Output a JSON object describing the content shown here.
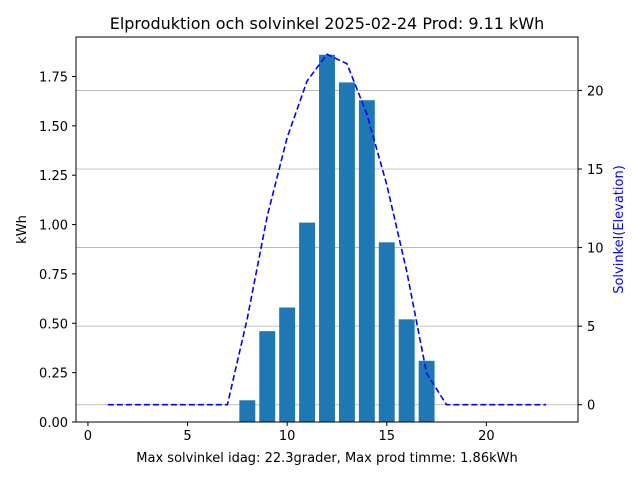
{
  "chart_data": {
    "type": "bar",
    "title": "Elproduktion och solvinkel 2025-02-24 Prod: 9.11 kWh",
    "xlabel": "Max solvinkel idag: 22.3grader, Max prod timme: 1.86kWh",
    "ylabel": "kWh",
    "y2label": "Solvinkel(Elevation)",
    "xlim": [
      -0.6,
      24.6
    ],
    "ylim": [
      0,
      1.95
    ],
    "y2lim": [
      -1.1,
      23.4
    ],
    "xticks": [
      0,
      5,
      10,
      15,
      20
    ],
    "xtick_labels": [
      "0",
      "5",
      "10",
      "15",
      "20"
    ],
    "yticks": [
      0,
      0.25,
      0.5,
      0.75,
      1.0,
      1.25,
      1.5,
      1.75
    ],
    "ytick_labels": [
      "0.00",
      "0.25",
      "0.50",
      "0.75",
      "1.00",
      "1.25",
      "1.50",
      "1.75"
    ],
    "y2ticks": [
      0,
      5,
      10,
      15,
      20
    ],
    "y2tick_labels": [
      "0",
      "5",
      "10",
      "15",
      "20"
    ],
    "grid": "horizontal lines at right-axis ticks",
    "bars": {
      "name": "kWh",
      "color": "#1f77b4",
      "x": [
        8,
        9,
        10,
        11,
        12,
        13,
        14,
        15,
        16,
        17
      ],
      "values": [
        0.11,
        0.46,
        0.58,
        1.01,
        1.86,
        1.72,
        1.63,
        0.91,
        0.52,
        0.31
      ]
    },
    "line": {
      "name": "Solvinkel(Elevation)",
      "color": "#0000ff",
      "style": "dashed",
      "x": [
        1,
        2,
        3,
        4,
        5,
        6,
        7,
        8,
        9,
        10,
        11,
        12,
        13,
        14,
        15,
        16,
        17,
        18,
        19,
        20,
        21,
        22,
        23
      ],
      "values": [
        0,
        0,
        0,
        0,
        0,
        0,
        0,
        5.5,
        12,
        17,
        20.6,
        22.3,
        21.7,
        18.5,
        14,
        8.5,
        2,
        0,
        0,
        0,
        0,
        0,
        0
      ]
    },
    "right_axis_color": "#0000ff"
  }
}
